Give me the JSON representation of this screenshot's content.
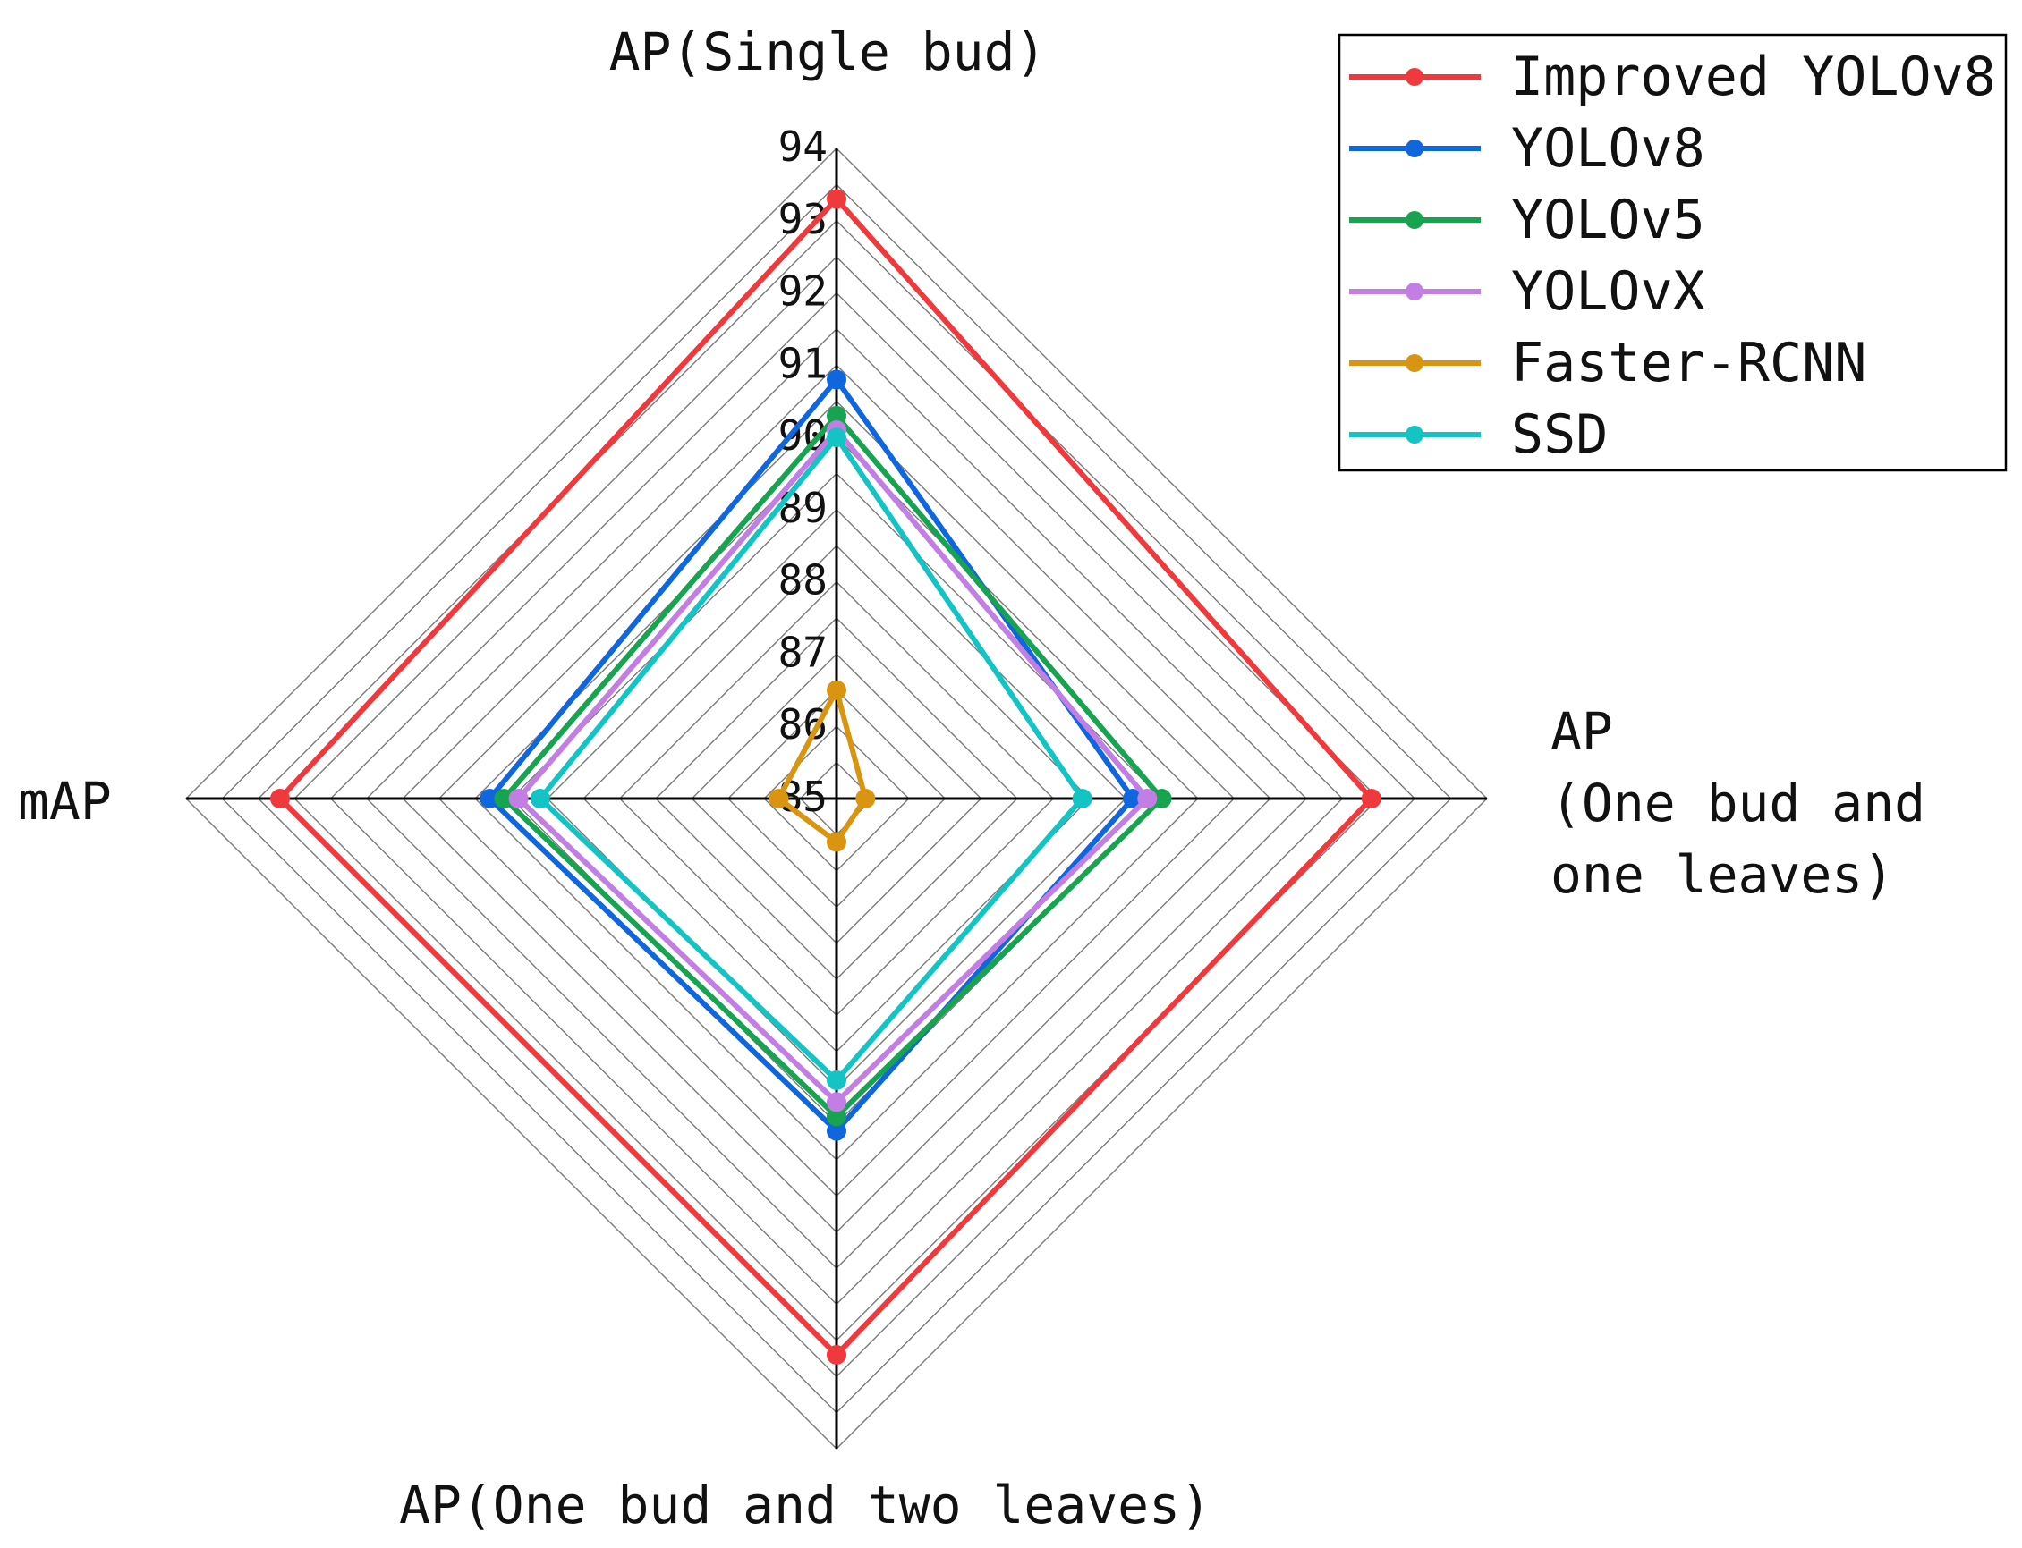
{
  "chart_data": {
    "type": "radar",
    "axes": [
      "AP(Single bud)",
      "AP\n(One bud and\none leaves)",
      "AP(One bud and two leaves)",
      "mAP"
    ],
    "radial_range": [
      85,
      94
    ],
    "radial_ticks": [
      "85",
      "86",
      "87",
      "88",
      "89",
      "90",
      "91",
      "92",
      "93",
      "94"
    ],
    "grid": true,
    "legend_position": "top-right",
    "series": [
      {
        "name": "Improved YOLOv8",
        "color": "#f0393c",
        "values": [
          93.3,
          92.4,
          92.7,
          92.7
        ]
      },
      {
        "name": "YOLOv8",
        "color": "#1066dd",
        "values": [
          90.8,
          89.1,
          89.6,
          89.8
        ]
      },
      {
        "name": "YOLOv5",
        "color": "#17a34f",
        "values": [
          90.3,
          89.5,
          89.4,
          89.6
        ]
      },
      {
        "name": "YOLOvX",
        "color": "#c27ee3",
        "values": [
          90.1,
          89.3,
          89.2,
          89.4
        ]
      },
      {
        "name": "Faster-RCNN",
        "color": "#d99410",
        "values": [
          86.5,
          85.4,
          85.6,
          85.8
        ]
      },
      {
        "name": "SSD",
        "color": "#14c4c4",
        "values": [
          90.0,
          88.4,
          88.9,
          89.1
        ]
      }
    ]
  }
}
